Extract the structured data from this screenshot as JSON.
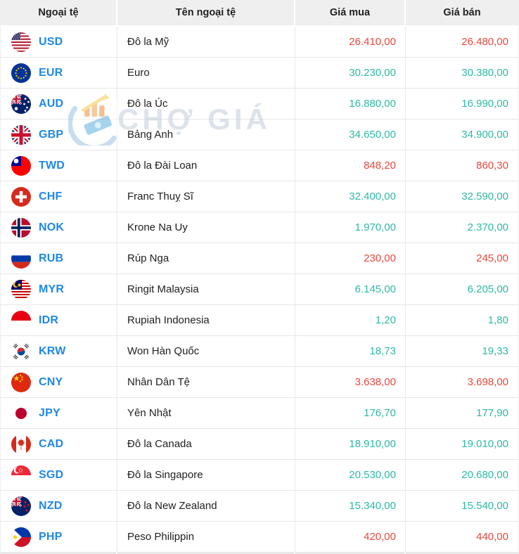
{
  "colors": {
    "up": "#2eb8a6",
    "down": "#e8473d",
    "link": "#1e88e5"
  },
  "header": {
    "columns": [
      "Ngoại tệ",
      "Tên ngoại tệ",
      "Giá mua",
      "Giá bán"
    ]
  },
  "watermark": {
    "text": "CHỢ GIÁ"
  },
  "rows": [
    {
      "code": "USD",
      "flag": "us",
      "name": "Đô la Mỹ",
      "buy": "26.410,00",
      "sell": "26.480,00",
      "direction": "down"
    },
    {
      "code": "EUR",
      "flag": "eur",
      "name": "Euro",
      "buy": "30.230,00",
      "sell": "30.380,00",
      "direction": "up"
    },
    {
      "code": "AUD",
      "flag": "aud",
      "name": "Đô la Úc",
      "buy": "16.880,00",
      "sell": "16.990,00",
      "direction": "up"
    },
    {
      "code": "GBP",
      "flag": "gbp",
      "name": "Bảng Anh",
      "buy": "34.650,00",
      "sell": "34.900,00",
      "direction": "up"
    },
    {
      "code": "TWD",
      "flag": "twd",
      "name": "Đô la Đài Loan",
      "buy": "848,20",
      "sell": "860,30",
      "direction": "down"
    },
    {
      "code": "CHF",
      "flag": "chf",
      "name": "Franc Thuỵ Sĩ",
      "buy": "32.400,00",
      "sell": "32.590,00",
      "direction": "up"
    },
    {
      "code": "NOK",
      "flag": "nok",
      "name": "Krone Na Uy",
      "buy": "1.970,00",
      "sell": "2.370,00",
      "direction": "up"
    },
    {
      "code": "RUB",
      "flag": "rub",
      "name": "Rúp Nga",
      "buy": "230,00",
      "sell": "245,00",
      "direction": "down"
    },
    {
      "code": "MYR",
      "flag": "myr",
      "name": "Ringit Malaysia",
      "buy": "6.145,00",
      "sell": "6.205,00",
      "direction": "up"
    },
    {
      "code": "IDR",
      "flag": "idr",
      "name": "Rupiah Indonesia",
      "buy": "1,20",
      "sell": "1,80",
      "direction": "up"
    },
    {
      "code": "KRW",
      "flag": "krw",
      "name": "Won Hàn Quốc",
      "buy": "18,73",
      "sell": "19,33",
      "direction": "up"
    },
    {
      "code": "CNY",
      "flag": "cny",
      "name": "Nhân Dân Tệ",
      "buy": "3.638,00",
      "sell": "3.698,00",
      "direction": "down"
    },
    {
      "code": "JPY",
      "flag": "jpy",
      "name": "Yên Nhật",
      "buy": "176,70",
      "sell": "177,90",
      "direction": "up"
    },
    {
      "code": "CAD",
      "flag": "cad",
      "name": "Đô la Canada",
      "buy": "18.910,00",
      "sell": "19.010,00",
      "direction": "up"
    },
    {
      "code": "SGD",
      "flag": "sgd",
      "name": "Đô la Singapore",
      "buy": "20.530,00",
      "sell": "20.680,00",
      "direction": "up"
    },
    {
      "code": "NZD",
      "flag": "nzd",
      "name": "Đô la New Zealand",
      "buy": "15.340,00",
      "sell": "15.540,00",
      "direction": "up"
    },
    {
      "code": "PHP",
      "flag": "php",
      "name": "Peso Philippin",
      "buy": "420,00",
      "sell": "440,00",
      "direction": "down"
    }
  ]
}
